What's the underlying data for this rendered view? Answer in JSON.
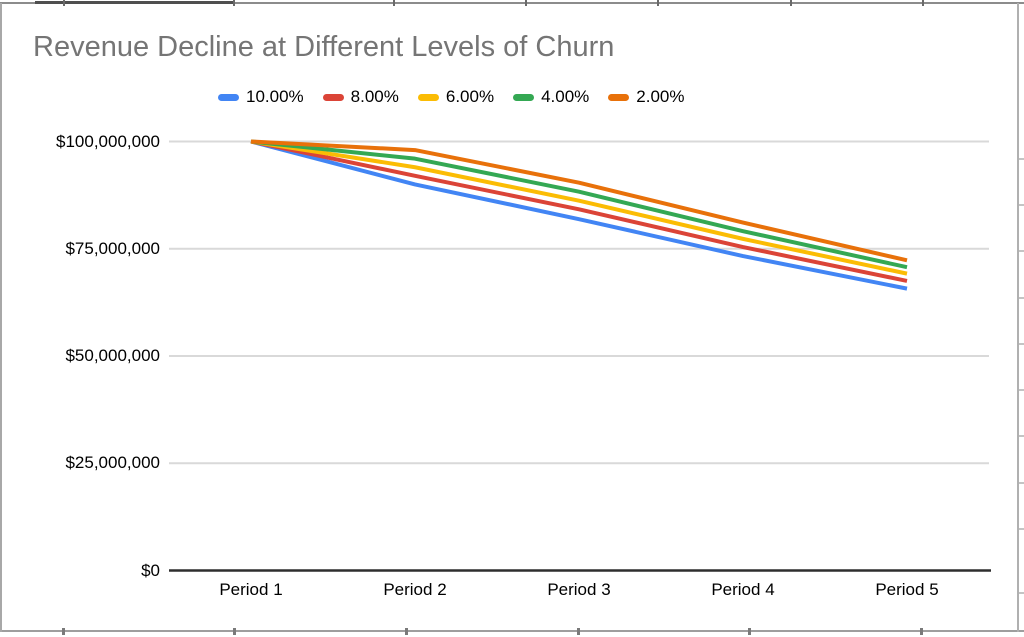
{
  "title": "Revenue Decline at Different Levels of Churn",
  "chart_data": {
    "type": "line",
    "title": "Revenue Decline at Different Levels of Churn",
    "categories": [
      "Period 1",
      "Period 2",
      "Period 3",
      "Period 4",
      "Period 5"
    ],
    "series": [
      {
        "name": "10.00%",
        "color": "#4285F4",
        "values": [
          100000000,
          90000000,
          81900000,
          73300000,
          65700000
        ]
      },
      {
        "name": "8.00%",
        "color": "#DB4437",
        "values": [
          100000000,
          92000000,
          84200000,
          75400000,
          67500000
        ]
      },
      {
        "name": "6.00%",
        "color": "#FBBC04",
        "values": [
          100000000,
          94000000,
          86200000,
          77300000,
          69200000
        ]
      },
      {
        "name": "4.00%",
        "color": "#34A853",
        "values": [
          100000000,
          96000000,
          88300000,
          79100000,
          70700000
        ]
      },
      {
        "name": "2.00%",
        "color": "#E8710A",
        "values": [
          100000000,
          98000000,
          90400000,
          81100000,
          72300000
        ]
      }
    ],
    "y_ticks": [
      {
        "value": 100000000,
        "label": "$100,000,000"
      },
      {
        "value": 75000000,
        "label": "$75,000,000"
      },
      {
        "value": 50000000,
        "label": "$50,000,000"
      },
      {
        "value": 25000000,
        "label": "$25,000,000"
      },
      {
        "value": 0,
        "label": "$0"
      }
    ],
    "xlabel": "",
    "ylabel": "",
    "ylim": [
      0,
      100000000
    ],
    "grid": true,
    "legend_position": "top",
    "colors": {
      "title_text": "#757575",
      "axis_text": "#000000",
      "gridline": "#d9d9d9",
      "axis_line": "#2e2e2e",
      "background": "#ffffff"
    }
  }
}
